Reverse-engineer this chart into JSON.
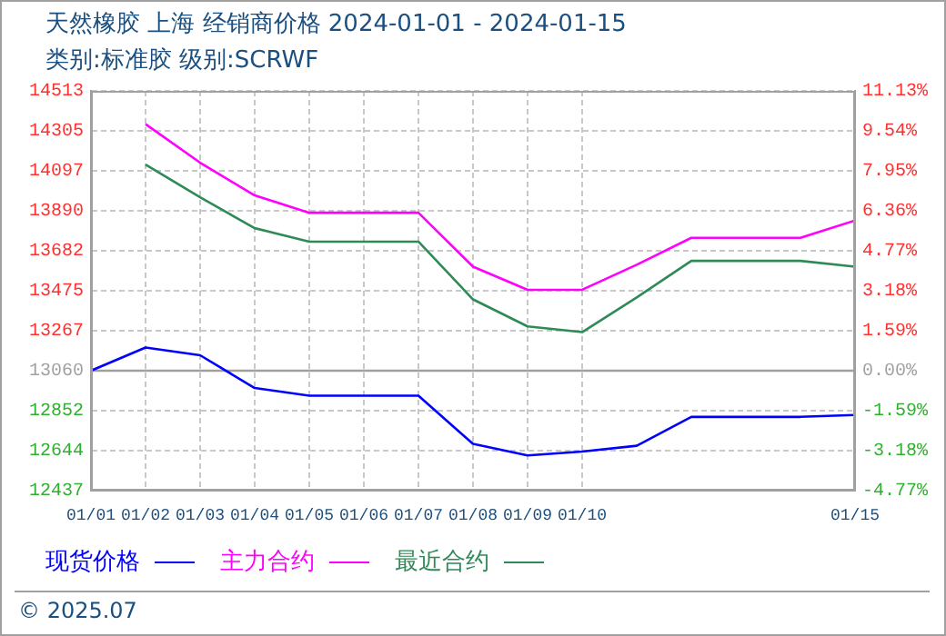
{
  "chart_data": {
    "type": "line",
    "title": "天然橡胶 上海 经销商价格 2024-01-01 - 2024-01-15",
    "subtitle": "类别:标准胶 级别:SCRWF",
    "x": [
      "2024-01-01",
      "2024-01-02",
      "2024-01-03",
      "2024-01-04",
      "2024-01-05",
      "2024-01-06",
      "2024-01-07",
      "2024-01-08",
      "2024-01-09",
      "2024-01-10",
      "2024-01-11",
      "2024-01-12",
      "2024-01-13",
      "2024-01-14",
      "2024-01-15"
    ],
    "series": [
      {
        "name": "现货价格",
        "color": "#0000ff",
        "values": [
          13060,
          13180,
          13140,
          12970,
          12930,
          12930,
          12930,
          12680,
          12620,
          12640,
          12670,
          12820,
          12820,
          12820,
          12830
        ]
      },
      {
        "name": "主力合约",
        "color": "#ff00ff",
        "values": [
          null,
          14340,
          14140,
          13970,
          13880,
          13880,
          13880,
          13600,
          13480,
          13480,
          13610,
          13750,
          13750,
          13750,
          13840
        ]
      },
      {
        "name": "最近合约",
        "color": "#2e8b57",
        "values": [
          null,
          14130,
          13960,
          13800,
          13730,
          13730,
          13730,
          13430,
          13290,
          13260,
          13440,
          13630,
          13630,
          13630,
          13600
        ]
      }
    ],
    "xlim": [
      "2024-01-01",
      "2024-01-15"
    ],
    "xticks": [
      {
        "value": "2024-01-01",
        "label": "01/01"
      },
      {
        "value": "2024-01-02",
        "label": "01/02"
      },
      {
        "value": "2024-01-03",
        "label": "01/03"
      },
      {
        "value": "2024-01-04",
        "label": "01/04"
      },
      {
        "value": "2024-01-05",
        "label": "01/05"
      },
      {
        "value": "2024-01-06",
        "label": "01/06"
      },
      {
        "value": "2024-01-07",
        "label": "01/07"
      },
      {
        "value": "2024-01-08",
        "label": "01/08"
      },
      {
        "value": "2024-01-09",
        "label": "01/09"
      },
      {
        "value": "2024-01-10",
        "label": "01/10"
      },
      {
        "value": "2024-01-15",
        "label": "01/15"
      }
    ],
    "ylim": [
      12437,
      14513
    ],
    "yticks": [
      14513,
      14305,
      14097,
      13890,
      13682,
      13475,
      13267,
      13060,
      12852,
      12644,
      12437
    ],
    "y2lim": [
      -4.77,
      11.13
    ],
    "y2ticks": [
      {
        "value": 11.13,
        "label": "11.13%"
      },
      {
        "value": 9.54,
        "label": "9.54%"
      },
      {
        "value": 7.95,
        "label": "7.95%"
      },
      {
        "value": 6.36,
        "label": "6.36%"
      },
      {
        "value": 4.77,
        "label": "4.77%"
      },
      {
        "value": 3.18,
        "label": "3.18%"
      },
      {
        "value": 1.59,
        "label": "1.59%"
      },
      {
        "value": 0,
        "label": "0.00%"
      },
      {
        "value": -1.59,
        "label": "-1.59%"
      },
      {
        "value": -3.18,
        "label": "-3.18%"
      },
      {
        "value": -4.77,
        "label": "-4.77%"
      }
    ],
    "ref_lines": [
      {
        "axis": "y",
        "value": 13060,
        "color": "#a0a0a0"
      }
    ],
    "grid": true,
    "legend": "bottom",
    "marker": "none",
    "line_style": "solid",
    "annotations": [
      "© 2025.07"
    ]
  }
}
